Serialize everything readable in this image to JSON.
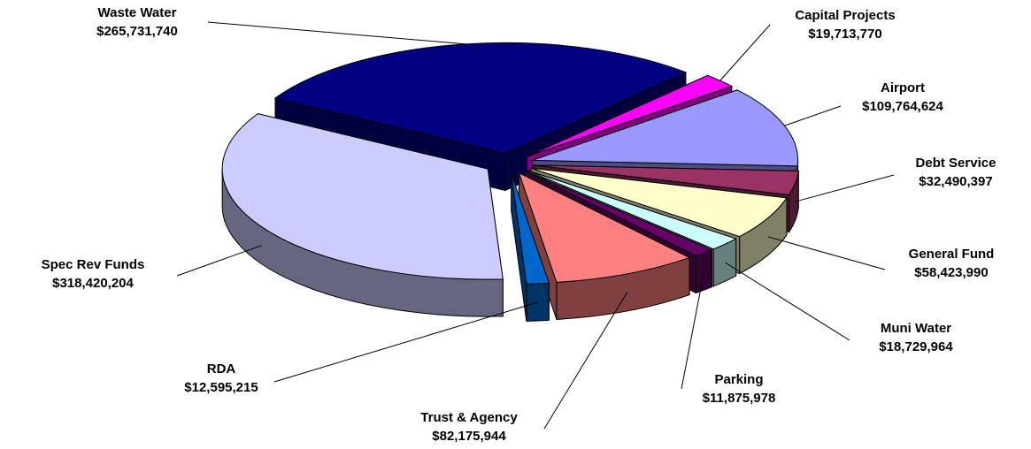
{
  "chart_data": {
    "type": "pie3d",
    "categories": [
      "Waste Water",
      "Capital Projects",
      "Airport",
      "Debt Service",
      "General Fund",
      "Muni Water",
      "Parking",
      "Trust & Agency",
      "RDA",
      "Spec Rev Funds"
    ],
    "values": [
      265731740,
      19713770,
      109764624,
      32490397,
      58423990,
      18729964,
      11875978,
      82175944,
      12595215,
      318420204
    ],
    "value_labels": [
      "$265,731,740",
      "$19,713,770",
      "$109,764,624",
      "$32,490,397",
      "$58,423,990",
      "$18,729,964",
      "$11,875,978",
      "$82,175,944",
      "$12,595,215",
      "$318,420,204"
    ],
    "colors": [
      "#000080",
      "#ff00ff",
      "#9999ff",
      "#993366",
      "#ffffcc",
      "#ccffff",
      "#660066",
      "#ff8080",
      "#0066cc",
      "#ccccff"
    ]
  }
}
